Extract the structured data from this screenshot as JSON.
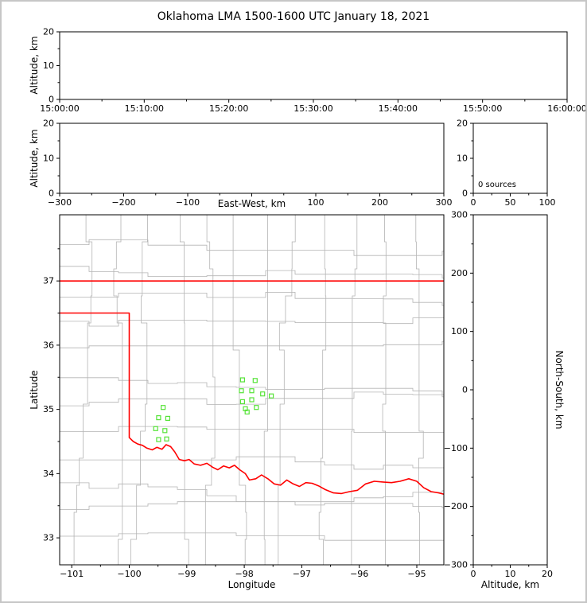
{
  "title": "Oklahoma LMA 1500-1600 UTC January 18, 2021",
  "colors": {
    "axis": "#000000",
    "figure_border": "#c6c6c6",
    "state_border": "#ff0000",
    "county_lines": "#b4b4b4",
    "marker": "#57e339"
  },
  "chart_data": [
    {
      "type": "scatter",
      "name": "time_height",
      "ylabel": "Altitude, km",
      "xtick_labels": [
        "15:00:00",
        "15:10:00",
        "15:20:00",
        "15:30:00",
        "15:40:00",
        "15:50:00",
        "16:00:00"
      ],
      "ylim": [
        0,
        20
      ],
      "yticks": [
        0,
        10,
        20
      ],
      "points": []
    },
    {
      "type": "scatter",
      "name": "ew_height",
      "xlabel": "East-West, km",
      "ylabel": "Altitude, km",
      "xlim": [
        -300,
        300
      ],
      "xticks": [
        -300,
        -200,
        -100,
        0,
        100,
        200,
        300
      ],
      "ylim": [
        0,
        20
      ],
      "yticks": [
        0,
        10,
        20
      ],
      "points": []
    },
    {
      "type": "histogram",
      "name": "source_count",
      "annotation": "0 sources",
      "xlim": [
        0,
        100
      ],
      "xticks": [
        0,
        50,
        100
      ],
      "ylim": [
        0,
        20
      ],
      "yticks": [
        0,
        10,
        20
      ],
      "values": []
    },
    {
      "type": "scatter",
      "name": "plan_view",
      "xlabel": "Longitude",
      "ylabel": "Latitude",
      "xlim": [
        -101.21,
        -94.53
      ],
      "ylim": [
        32.58,
        38.03
      ],
      "xticks": [
        -101,
        -100,
        -99,
        -98,
        -97,
        -96,
        -95
      ],
      "yticks": [
        33,
        34,
        35,
        36,
        37
      ],
      "marker": "open-square",
      "marker_size_px": 5,
      "points": [
        [
          -98.03,
          35.46
        ],
        [
          -97.81,
          35.45
        ],
        [
          -98.05,
          35.29
        ],
        [
          -97.87,
          35.29
        ],
        [
          -97.68,
          35.24
        ],
        [
          -98.03,
          35.12
        ],
        [
          -97.87,
          35.15
        ],
        [
          -97.53,
          35.21
        ],
        [
          -97.98,
          35.01
        ],
        [
          -97.79,
          35.03
        ],
        [
          -97.95,
          34.96
        ],
        [
          -99.41,
          35.03
        ],
        [
          -99.49,
          34.87
        ],
        [
          -99.33,
          34.86
        ],
        [
          -99.54,
          34.7
        ],
        [
          -99.38,
          34.67
        ],
        [
          -99.49,
          34.53
        ],
        [
          -99.35,
          34.54
        ]
      ],
      "state_border": {
        "north_line": [
          [
            -101.21,
            37.0
          ],
          [
            -94.53,
            37.0
          ]
        ],
        "west_and_red_river": [
          [
            -101.21,
            36.5
          ],
          [
            -100.0,
            36.5
          ],
          [
            -100.0,
            34.56
          ],
          [
            -99.93,
            34.5
          ],
          [
            -99.85,
            34.46
          ],
          [
            -99.77,
            34.44
          ],
          [
            -99.7,
            34.4
          ],
          [
            -99.6,
            34.37
          ],
          [
            -99.52,
            34.41
          ],
          [
            -99.43,
            34.38
          ],
          [
            -99.36,
            34.45
          ],
          [
            -99.28,
            34.42
          ],
          [
            -99.21,
            34.34
          ],
          [
            -99.13,
            34.22
          ],
          [
            -99.04,
            34.2
          ],
          [
            -98.96,
            34.22
          ],
          [
            -98.87,
            34.15
          ],
          [
            -98.76,
            34.13
          ],
          [
            -98.65,
            34.16
          ],
          [
            -98.55,
            34.1
          ],
          [
            -98.46,
            34.06
          ],
          [
            -98.36,
            34.12
          ],
          [
            -98.26,
            34.09
          ],
          [
            -98.17,
            34.13
          ],
          [
            -98.08,
            34.06
          ],
          [
            -97.98,
            34.0
          ],
          [
            -97.91,
            33.9
          ],
          [
            -97.8,
            33.92
          ],
          [
            -97.7,
            33.98
          ],
          [
            -97.59,
            33.92
          ],
          [
            -97.48,
            33.84
          ],
          [
            -97.37,
            33.82
          ],
          [
            -97.26,
            33.9
          ],
          [
            -97.15,
            33.84
          ],
          [
            -97.04,
            33.8
          ],
          [
            -96.93,
            33.86
          ],
          [
            -96.82,
            33.85
          ],
          [
            -96.71,
            33.81
          ],
          [
            -96.59,
            33.75
          ],
          [
            -96.45,
            33.7
          ],
          [
            -96.31,
            33.69
          ],
          [
            -96.17,
            33.72
          ],
          [
            -96.03,
            33.74
          ],
          [
            -95.89,
            33.84
          ],
          [
            -95.74,
            33.88
          ],
          [
            -95.59,
            33.87
          ],
          [
            -95.44,
            33.86
          ],
          [
            -95.29,
            33.88
          ],
          [
            -95.14,
            33.92
          ],
          [
            -95.0,
            33.88
          ],
          [
            -94.88,
            33.78
          ],
          [
            -94.75,
            33.72
          ],
          [
            -94.62,
            33.7
          ],
          [
            -94.53,
            33.68
          ]
        ]
      }
    },
    {
      "type": "scatter",
      "name": "ns_height",
      "xlabel": "Altitude, km",
      "ylabel": "North-South, km",
      "xlim": [
        0,
        20
      ],
      "xticks": [
        0,
        10,
        20
      ],
      "ylim": [
        -300,
        300
      ],
      "yticks": [
        -300,
        -200,
        -100,
        0,
        100,
        200,
        300
      ],
      "points": []
    }
  ]
}
